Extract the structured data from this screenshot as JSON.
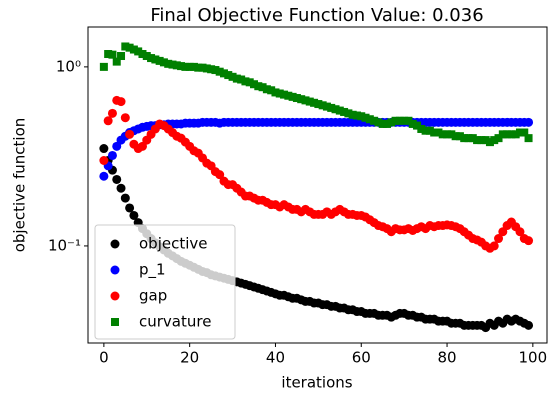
{
  "chart_data": {
    "type": "scatter",
    "title": "Final Objective Function Value: 0.036",
    "xlabel": "iterations",
    "ylabel": "objective function",
    "yscale": "log",
    "legend": "lower left",
    "xlim": [
      -3.7,
      103.3
    ],
    "xticks": [
      0,
      20,
      40,
      60,
      80,
      100
    ],
    "ylim": [
      0.0287,
      1.67
    ],
    "yticks": [
      {
        "value": 0.1,
        "label": "10⁻¹"
      },
      {
        "value": 1,
        "label": "10⁰"
      }
    ],
    "x": [
      0,
      1,
      2,
      3,
      4,
      5,
      6,
      7,
      8,
      9,
      10,
      11,
      12,
      13,
      14,
      15,
      16,
      17,
      18,
      19,
      20,
      21,
      22,
      23,
      24,
      25,
      26,
      27,
      28,
      29,
      30,
      31,
      32,
      33,
      34,
      35,
      36,
      37,
      38,
      39,
      40,
      41,
      42,
      43,
      44,
      45,
      46,
      47,
      48,
      49,
      50,
      51,
      52,
      53,
      54,
      55,
      56,
      57,
      58,
      59,
      60,
      61,
      62,
      63,
      64,
      65,
      66,
      67,
      68,
      69,
      70,
      71,
      72,
      73,
      74,
      75,
      76,
      77,
      78,
      79,
      80,
      81,
      82,
      83,
      84,
      85,
      86,
      87,
      88,
      89,
      90,
      91,
      92,
      93,
      94,
      95,
      96,
      97,
      98,
      99
    ],
    "series": [
      {
        "name": "objective",
        "color": "#000000",
        "marker": "circle",
        "values": [
          0.35,
          0.3,
          0.265,
          0.235,
          0.21,
          0.185,
          0.163,
          0.148,
          0.135,
          0.125,
          0.117,
          0.11,
          0.104,
          0.099,
          0.095,
          0.091,
          0.088,
          0.085,
          0.082,
          0.08,
          0.078,
          0.076,
          0.074,
          0.072,
          0.071,
          0.069,
          0.068,
          0.067,
          0.066,
          0.065,
          0.064,
          0.063,
          0.062,
          0.061,
          0.06,
          0.059,
          0.058,
          0.057,
          0.056,
          0.055,
          0.054,
          0.053,
          0.053,
          0.052,
          0.051,
          0.051,
          0.05,
          0.049,
          0.049,
          0.048,
          0.048,
          0.047,
          0.047,
          0.046,
          0.046,
          0.045,
          0.045,
          0.044,
          0.044,
          0.043,
          0.043,
          0.042,
          0.042,
          0.042,
          0.041,
          0.041,
          0.041,
          0.04,
          0.041,
          0.042,
          0.042,
          0.041,
          0.041,
          0.04,
          0.04,
          0.039,
          0.039,
          0.039,
          0.038,
          0.038,
          0.038,
          0.037,
          0.037,
          0.037,
          0.036,
          0.036,
          0.036,
          0.036,
          0.036,
          0.035,
          0.037,
          0.036,
          0.038,
          0.037,
          0.039,
          0.038,
          0.039,
          0.038,
          0.037,
          0.036
        ]
      },
      {
        "name": "p_1",
        "color": "#0000ff",
        "marker": "circle",
        "values": [
          0.245,
          0.28,
          0.32,
          0.36,
          0.39,
          0.41,
          0.43,
          0.44,
          0.45,
          0.46,
          0.465,
          0.47,
          0.47,
          0.475,
          0.475,
          0.48,
          0.48,
          0.48,
          0.48,
          0.485,
          0.485,
          0.485,
          0.485,
          0.49,
          0.49,
          0.49,
          0.49,
          0.485,
          0.49,
          0.49,
          0.49,
          0.49,
          0.49,
          0.49,
          0.49,
          0.49,
          0.49,
          0.49,
          0.49,
          0.49,
          0.49,
          0.49,
          0.49,
          0.49,
          0.49,
          0.49,
          0.49,
          0.49,
          0.49,
          0.49,
          0.49,
          0.49,
          0.49,
          0.49,
          0.49,
          0.49,
          0.49,
          0.49,
          0.49,
          0.49,
          0.49,
          0.49,
          0.49,
          0.49,
          0.49,
          0.49,
          0.49,
          0.49,
          0.49,
          0.49,
          0.49,
          0.49,
          0.49,
          0.49,
          0.49,
          0.49,
          0.49,
          0.49,
          0.49,
          0.49,
          0.49,
          0.49,
          0.49,
          0.49,
          0.49,
          0.49,
          0.49,
          0.49,
          0.49,
          0.49,
          0.49,
          0.49,
          0.49,
          0.49,
          0.49,
          0.49,
          0.49,
          0.49,
          0.49,
          0.49
        ]
      },
      {
        "name": "gap",
        "color": "#ff0000",
        "marker": "circle",
        "values": [
          0.3,
          0.5,
          0.55,
          0.65,
          0.64,
          0.52,
          0.42,
          0.37,
          0.35,
          0.36,
          0.39,
          0.42,
          0.45,
          0.48,
          0.47,
          0.45,
          0.43,
          0.41,
          0.4,
          0.38,
          0.36,
          0.34,
          0.33,
          0.31,
          0.29,
          0.28,
          0.26,
          0.25,
          0.23,
          0.22,
          0.22,
          0.21,
          0.2,
          0.19,
          0.19,
          0.185,
          0.18,
          0.18,
          0.175,
          0.17,
          0.17,
          0.165,
          0.17,
          0.165,
          0.16,
          0.16,
          0.155,
          0.16,
          0.155,
          0.15,
          0.15,
          0.15,
          0.155,
          0.15,
          0.155,
          0.16,
          0.155,
          0.15,
          0.15,
          0.148,
          0.148,
          0.145,
          0.14,
          0.135,
          0.13,
          0.128,
          0.125,
          0.12,
          0.125,
          0.123,
          0.123,
          0.125,
          0.122,
          0.125,
          0.128,
          0.125,
          0.13,
          0.128,
          0.13,
          0.13,
          0.131,
          0.13,
          0.128,
          0.125,
          0.12,
          0.115,
          0.11,
          0.108,
          0.105,
          0.1,
          0.097,
          0.1,
          0.11,
          0.12,
          0.13,
          0.136,
          0.128,
          0.12,
          0.11,
          0.107
        ]
      },
      {
        "name": "curvature",
        "color": "#008000",
        "marker": "square",
        "values": [
          1.0,
          1.18,
          1.17,
          1.07,
          1.15,
          1.3,
          1.28,
          1.25,
          1.22,
          1.18,
          1.15,
          1.12,
          1.1,
          1.08,
          1.06,
          1.04,
          1.03,
          1.02,
          1.01,
          1.0,
          1.0,
          1.0,
          0.99,
          0.99,
          0.98,
          0.97,
          0.96,
          0.94,
          0.92,
          0.9,
          0.88,
          0.86,
          0.85,
          0.83,
          0.82,
          0.8,
          0.78,
          0.77,
          0.75,
          0.74,
          0.72,
          0.71,
          0.7,
          0.69,
          0.68,
          0.67,
          0.66,
          0.65,
          0.64,
          0.63,
          0.62,
          0.61,
          0.6,
          0.59,
          0.58,
          0.57,
          0.56,
          0.55,
          0.54,
          0.535,
          0.53,
          0.52,
          0.51,
          0.5,
          0.49,
          0.48,
          0.48,
          0.49,
          0.5,
          0.5,
          0.5,
          0.5,
          0.48,
          0.47,
          0.45,
          0.44,
          0.44,
          0.43,
          0.43,
          0.42,
          0.42,
          0.42,
          0.41,
          0.41,
          0.4,
          0.4,
          0.4,
          0.39,
          0.39,
          0.39,
          0.38,
          0.39,
          0.4,
          0.42,
          0.42,
          0.42,
          0.42,
          0.43,
          0.43,
          0.4
        ]
      }
    ]
  }
}
